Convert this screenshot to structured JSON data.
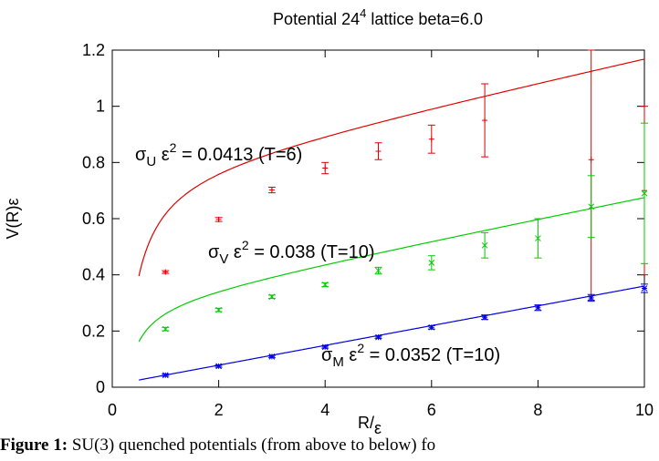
{
  "chart_data": {
    "type": "scatter",
    "title_main": "Potential 24",
    "title_sup": "4",
    "title_rest": " lattice beta=6.0",
    "xlabel": "R/",
    "xlabel_sym": "ε",
    "ylabel": "V(R)ε",
    "xlim": [
      0,
      10
    ],
    "ylim": [
      0,
      1.2
    ],
    "x_ticks": [
      0,
      2,
      4,
      6,
      8,
      10
    ],
    "x_tick_labels": [
      "0",
      "2",
      "4",
      "6",
      "8",
      "10"
    ],
    "y_ticks": [
      0,
      0.2,
      0.4,
      0.6,
      0.8,
      1,
      1.2
    ],
    "y_tick_labels": [
      "0",
      "0.2",
      "0.4",
      "0.6",
      "0.8",
      "1",
      "1.2"
    ],
    "grid": false,
    "series": [
      {
        "color": "#e00000",
        "marker": "plus",
        "points": [
          {
            "x": 1,
            "y": 0.41,
            "err": 0.005
          },
          {
            "x": 2,
            "y": 0.597,
            "err": 0.007
          },
          {
            "x": 3,
            "y": 0.702,
            "err": 0.01
          },
          {
            "x": 4,
            "y": 0.78,
            "err": 0.02
          },
          {
            "x": 5,
            "y": 0.84,
            "err": 0.03
          },
          {
            "x": 6,
            "y": 0.883,
            "err": 0.05
          },
          {
            "x": 7,
            "y": 0.95,
            "err": 0.13
          },
          {
            "x": 9,
            "y": 0.81,
            "err": 0.5
          },
          {
            "x": 10,
            "y": 0.7,
            "err": 0.3
          }
        ],
        "fit": {
          "a": 0.03,
          "b": 0.2,
          "c": 0.775,
          "sigma": 0.0413,
          "x_from": 0.5,
          "x_to": 10
        }
      },
      {
        "color": "#00cc00",
        "marker": "cross",
        "points": [
          {
            "x": 1,
            "y": 0.207,
            "err": 0.006
          },
          {
            "x": 2,
            "y": 0.275,
            "err": 0.006
          },
          {
            "x": 3,
            "y": 0.322,
            "err": 0.006
          },
          {
            "x": 4,
            "y": 0.365,
            "err": 0.007
          },
          {
            "x": 5,
            "y": 0.415,
            "err": 0.012
          },
          {
            "x": 6,
            "y": 0.443,
            "err": 0.025
          },
          {
            "x": 7,
            "y": 0.505,
            "err": 0.045
          },
          {
            "x": 8,
            "y": 0.53,
            "err": 0.07
          },
          {
            "x": 9,
            "y": 0.643,
            "err": 0.11
          },
          {
            "x": 10,
            "y": 0.69,
            "err": 0.25
          }
        ],
        "fit": {
          "a": 0.0,
          "b": 0.08,
          "c": 0.303,
          "sigma": 0.038,
          "x_from": 0.5,
          "x_to": 10
        }
      },
      {
        "color": "#0000e0",
        "marker": "star",
        "points": [
          {
            "x": 1,
            "y": 0.043,
            "err": 0.004
          },
          {
            "x": 2,
            "y": 0.075,
            "err": 0.004
          },
          {
            "x": 3,
            "y": 0.109,
            "err": 0.004
          },
          {
            "x": 4,
            "y": 0.143,
            "err": 0.004
          },
          {
            "x": 5,
            "y": 0.178,
            "err": 0.004
          },
          {
            "x": 6,
            "y": 0.213,
            "err": 0.006
          },
          {
            "x": 7,
            "y": 0.249,
            "err": 0.008
          },
          {
            "x": 8,
            "y": 0.283,
            "err": 0.01
          },
          {
            "x": 9,
            "y": 0.318,
            "err": 0.012
          },
          {
            "x": 10,
            "y": 0.352,
            "err": 0.015
          }
        ],
        "fit": {
          "a": 0.0,
          "b": 0.0,
          "c": 0.008,
          "sigma": 0.0352,
          "x_from": 0.5,
          "x_to": 10
        }
      }
    ],
    "annotations": [
      {
        "sym": "σ",
        "sub": "U",
        "eps": " ε",
        "sup": "2",
        "rest": " = 0.0413 (T=6)"
      },
      {
        "sym": "σ",
        "sub": "V",
        "eps": " ε",
        "sup": "2",
        "rest": " = 0.038 (T=10)"
      },
      {
        "sym": "σ",
        "sub": "M",
        "eps": " ε",
        "sup": "2",
        "rest": " = 0.0352 (T=10)"
      }
    ]
  },
  "caption": {
    "label": "Figure 1:",
    "text": " SU(3) quenched potentials (from above to below) fo"
  }
}
